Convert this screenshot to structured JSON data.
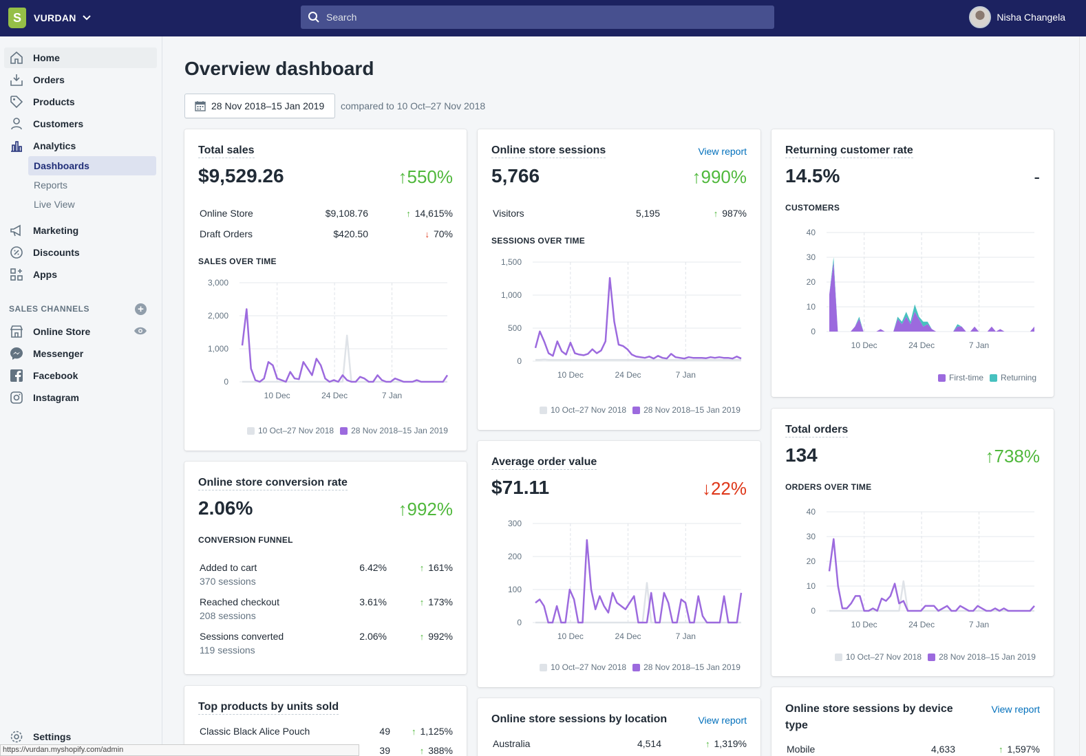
{
  "store": {
    "name": "VURDAN",
    "logo_letter": "S"
  },
  "search": {
    "placeholder": "Search"
  },
  "user": {
    "name": "Nisha Changela"
  },
  "sidebar": {
    "items": [
      {
        "label": "Home",
        "icon": "home-icon"
      },
      {
        "label": "Orders",
        "icon": "orders-icon"
      },
      {
        "label": "Products",
        "icon": "tag-icon"
      },
      {
        "label": "Customers",
        "icon": "person-icon"
      },
      {
        "label": "Analytics",
        "icon": "bar-chart-icon"
      }
    ],
    "sub_items": [
      "Dashboards",
      "Reports",
      "Live View"
    ],
    "items2": [
      {
        "label": "Marketing",
        "icon": "megaphone-icon"
      },
      {
        "label": "Discounts",
        "icon": "discount-icon"
      },
      {
        "label": "Apps",
        "icon": "apps-icon"
      }
    ],
    "channels_heading": "SALES CHANNELS",
    "channels": [
      {
        "label": "Online Store",
        "icon": "store-icon"
      },
      {
        "label": "Messenger",
        "icon": "messenger-icon"
      },
      {
        "label": "Facebook",
        "icon": "facebook-icon"
      },
      {
        "label": "Instagram",
        "icon": "instagram-icon"
      }
    ],
    "settings": "Settings"
  },
  "page": {
    "title": "Overview dashboard",
    "date_range": "28 Nov 2018–15 Jan 2019",
    "compare": "compared to 10 Oct–27 Nov 2018"
  },
  "legend": {
    "prev": "10 Oct–27 Nov 2018",
    "curr": "28 Nov 2018–15 Jan 2019",
    "first_time": "First-time",
    "returning": "Returning"
  },
  "colors": {
    "current": "#9c6ade",
    "previous": "#dfe3e8",
    "returning": "#47c1bf",
    "up": "#50b83c",
    "down": "#de3618",
    "link": "#006fbb"
  },
  "cards": {
    "total_sales": {
      "title": "Total sales",
      "value": "$9,529.26",
      "change": "550%",
      "rows": [
        {
          "label": "Online Store",
          "value": "$9,108.76",
          "change": "14,615%"
        },
        {
          "label": "Draft Orders",
          "value": "$420.50",
          "change": "70%"
        }
      ],
      "section": "SALES OVER TIME"
    },
    "conversion": {
      "title": "Online store conversion rate",
      "value": "2.06%",
      "change": "992%",
      "section": "CONVERSION FUNNEL",
      "rows": [
        {
          "label": "Added to cart",
          "sub": "370 sessions",
          "value": "6.42%",
          "change": "161%"
        },
        {
          "label": "Reached checkout",
          "sub": "208 sessions",
          "value": "3.61%",
          "change": "173%"
        },
        {
          "label": "Sessions converted",
          "sub": "119 sessions",
          "value": "2.06%",
          "change": "992%"
        }
      ]
    },
    "top_products": {
      "title": "Top products by units sold",
      "rows": [
        {
          "label": "Classic Black Alice Pouch",
          "value": "49",
          "change": "1,125%"
        },
        {
          "label": "",
          "value": "39",
          "change": "388%"
        }
      ]
    },
    "sessions": {
      "title": "Online store sessions",
      "link": "View report",
      "value": "5,766",
      "change": "990%",
      "rows": [
        {
          "label": "Visitors",
          "value": "5,195",
          "change": "987%"
        }
      ],
      "section": "SESSIONS OVER TIME"
    },
    "aov": {
      "title": "Average order value",
      "value": "$71.11",
      "change": "22%"
    },
    "location": {
      "title": "Online store sessions by location",
      "link": "View report",
      "rows": [
        {
          "label": "Australia",
          "value": "4,514",
          "change": "1,319%"
        }
      ]
    },
    "returning": {
      "title": "Returning customer rate",
      "value": "14.5%",
      "change": "-",
      "section": "CUSTOMERS"
    },
    "orders": {
      "title": "Total orders",
      "value": "134",
      "change": "738%",
      "section": "ORDERS OVER TIME"
    },
    "device": {
      "title_line1": "Online store sessions by device",
      "title_line2": "type",
      "link": "View report",
      "rows": [
        {
          "label": "Mobile",
          "value": "4,633",
          "change": "1,597%"
        }
      ]
    }
  },
  "status_url": "https://vurdan.myshopify.com/admin",
  "chart_data": [
    {
      "type": "line",
      "title": "SALES OVER TIME",
      "x_ticks": [
        "10 Dec",
        "24 Dec",
        "7 Jan"
      ],
      "y_ticks": [
        "0",
        "1,000",
        "2,000",
        "3,000"
      ],
      "ylim": [
        0,
        3000
      ],
      "series": [
        {
          "name": "28 Nov 2018–15 Jan 2019",
          "values": [
            1100,
            2200,
            400,
            50,
            0,
            100,
            600,
            500,
            100,
            50,
            0,
            300,
            100,
            80,
            600,
            400,
            200,
            700,
            500,
            100,
            0,
            50,
            0,
            200,
            50,
            0,
            0,
            150,
            100,
            0,
            0,
            200,
            50,
            0,
            0,
            100,
            50,
            0,
            0,
            0,
            50,
            0,
            0,
            0,
            0,
            0,
            0,
            200
          ]
        },
        {
          "name": "10 Oct–27 Nov 2018",
          "values": [
            0,
            0,
            0,
            0,
            0,
            0,
            0,
            0,
            0,
            0,
            0,
            0,
            0,
            0,
            0,
            0,
            0,
            0,
            0,
            0,
            0,
            0,
            0,
            0,
            1400,
            0,
            0,
            0,
            0,
            0,
            0,
            0,
            0,
            0,
            0,
            0,
            0,
            0,
            0,
            0,
            0,
            0,
            0,
            0,
            0,
            0,
            0,
            0
          ]
        }
      ]
    },
    {
      "type": "line",
      "title": "SESSIONS OVER TIME",
      "x_ticks": [
        "10 Dec",
        "24 Dec",
        "7 Jan"
      ],
      "y_ticks": [
        "0",
        "500",
        "1,000",
        "1,500"
      ],
      "ylim": [
        0,
        1500
      ],
      "series": [
        {
          "name": "28 Nov 2018–15 Jan 2019",
          "values": [
            200,
            450,
            300,
            120,
            80,
            300,
            150,
            100,
            280,
            120,
            100,
            90,
            110,
            180,
            120,
            160,
            300,
            1260,
            600,
            250,
            230,
            180,
            100,
            70,
            60,
            50,
            70,
            40,
            80,
            50,
            40,
            110,
            60,
            50,
            40,
            60,
            50,
            50,
            50,
            45,
            60,
            50,
            60,
            50,
            50,
            40,
            70,
            40
          ]
        },
        {
          "name": "10 Oct–27 Nov 2018",
          "values": [
            20,
            20,
            25,
            20,
            20,
            20,
            20,
            20,
            20,
            20,
            20,
            20,
            20,
            20,
            20,
            20,
            20,
            20,
            20,
            20,
            20,
            20,
            20,
            20,
            20,
            20,
            20,
            20,
            20,
            20,
            20,
            20,
            20,
            20,
            20,
            20,
            20,
            20,
            20,
            20,
            20,
            20,
            20,
            20,
            20,
            20,
            20,
            20
          ]
        }
      ]
    },
    {
      "type": "line",
      "title": "Average order value",
      "x_ticks": [
        "10 Dec",
        "24 Dec",
        "7 Jan"
      ],
      "y_ticks": [
        "0",
        "100",
        "200",
        "300"
      ],
      "ylim": [
        0,
        300
      ],
      "series": [
        {
          "name": "28 Nov 2018–15 Jan 2019",
          "values": [
            60,
            70,
            50,
            0,
            0,
            50,
            0,
            0,
            100,
            70,
            0,
            0,
            250,
            100,
            40,
            80,
            50,
            30,
            90,
            60,
            50,
            40,
            60,
            80,
            0,
            0,
            0,
            90,
            0,
            0,
            90,
            60,
            0,
            0,
            70,
            60,
            0,
            0,
            80,
            20,
            0,
            0,
            0,
            0,
            80,
            0,
            0,
            0,
            90
          ]
        },
        {
          "name": "10 Oct–27 Nov 2018",
          "values": [
            0,
            0,
            0,
            0,
            0,
            0,
            0,
            0,
            0,
            0,
            0,
            0,
            0,
            0,
            0,
            0,
            0,
            0,
            0,
            0,
            0,
            0,
            0,
            0,
            0,
            0,
            120,
            0,
            0,
            0,
            0,
            0,
            0,
            0,
            0,
            0,
            0,
            0,
            0,
            0,
            0,
            0,
            0,
            0,
            0,
            0,
            0,
            0,
            0
          ]
        }
      ]
    },
    {
      "type": "area",
      "title": "CUSTOMERS",
      "x_ticks": [
        "10 Dec",
        "24 Dec",
        "7 Jan"
      ],
      "y_ticks": [
        "0",
        "10",
        "20",
        "30",
        "40"
      ],
      "ylim": [
        0,
        40
      ],
      "series": [
        {
          "name": "First-time",
          "values": [
            15,
            28,
            0,
            0,
            0,
            0,
            2,
            5,
            0,
            0,
            0,
            0,
            1,
            0,
            0,
            0,
            5,
            3,
            6,
            3,
            8,
            5,
            2,
            3,
            1,
            0,
            0,
            0,
            0,
            0,
            2,
            2,
            0,
            0,
            2,
            0,
            0,
            0,
            2,
            0,
            1,
            0,
            0,
            0,
            0,
            0,
            0,
            0,
            2
          ]
        },
        {
          "name": "Returning",
          "values": [
            0,
            2,
            0,
            0,
            0,
            0,
            0,
            1,
            0,
            0,
            0,
            0,
            0,
            0,
            0,
            0,
            1,
            1,
            2,
            1,
            3,
            1,
            2,
            1,
            0,
            0,
            0,
            0,
            0,
            0,
            1,
            0,
            0,
            0,
            0,
            0,
            0,
            0,
            0,
            0,
            0,
            0,
            0,
            0,
            0,
            0,
            0,
            0,
            0
          ]
        }
      ]
    },
    {
      "type": "line",
      "title": "ORDERS OVER TIME",
      "x_ticks": [
        "10 Dec",
        "24 Dec",
        "7 Jan"
      ],
      "y_ticks": [
        "0",
        "10",
        "20",
        "30",
        "40"
      ],
      "ylim": [
        0,
        40
      ],
      "series": [
        {
          "name": "28 Nov 2018–15 Jan 2019",
          "values": [
            16,
            29,
            10,
            1,
            1,
            3,
            6,
            6,
            0,
            0,
            1,
            0,
            5,
            4,
            6,
            11,
            3,
            4,
            0,
            0,
            0,
            0,
            2,
            2,
            2,
            0,
            1,
            2,
            0,
            0,
            2,
            1,
            0,
            0,
            2,
            1,
            0,
            0,
            1,
            0,
            1,
            0,
            0,
            0,
            0,
            0,
            0,
            2
          ]
        },
        {
          "name": "10 Oct–27 Nov 2018",
          "values": [
            0,
            0,
            0,
            0,
            0,
            0,
            0,
            0,
            0,
            0,
            0,
            0,
            0,
            0,
            0,
            0,
            0,
            12,
            0,
            0,
            0,
            0,
            0,
            0,
            0,
            0,
            0,
            0,
            0,
            0,
            0,
            0,
            0,
            0,
            0,
            0,
            0,
            0,
            0,
            0,
            0,
            0,
            0,
            0,
            0,
            0,
            0,
            0
          ]
        }
      ]
    }
  ]
}
